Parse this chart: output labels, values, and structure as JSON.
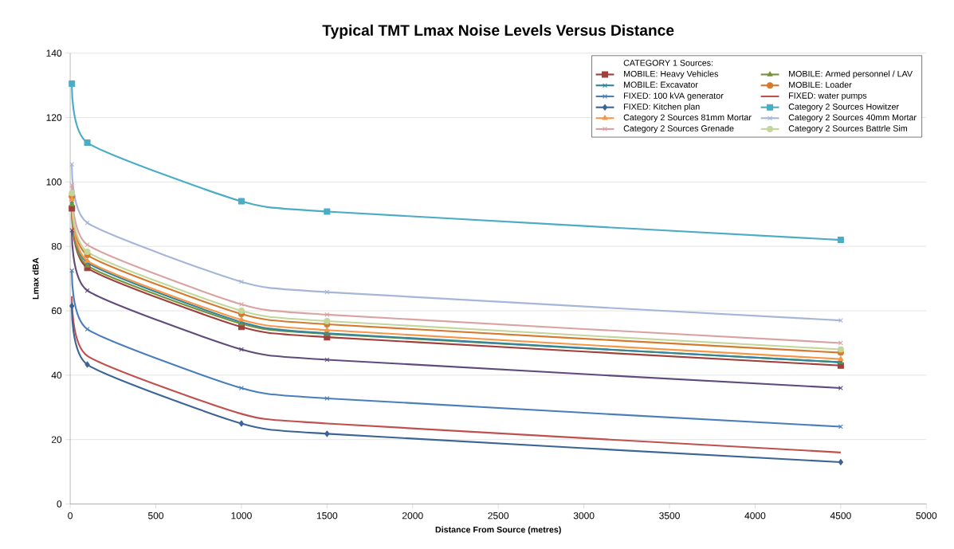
{
  "chart_data": {
    "type": "line",
    "title": "Typical TMT Lmax Noise Levels Versus Distance",
    "xlabel": "Distance From Source (metres)",
    "ylabel": "Lmax    dBA",
    "legend_title": "CATEGORY 1 Sources:",
    "x": [
      10,
      100,
      1000,
      1500,
      4500
    ],
    "series": [
      {
        "name": "MOBILE: Heavy Vehicles",
        "color": "#a0403c",
        "marker": "square",
        "values": [
          91.8,
          73.3,
          55,
          51.8,
          43
        ]
      },
      {
        "name": "MOBILE: Armed personnel / LAV",
        "color": "#77933c",
        "marker": "triangle",
        "values": [
          93,
          74,
          56,
          52.8,
          44
        ]
      },
      {
        "color": "#604a7b",
        "marker": "cross",
        "values": [
          85,
          66.3,
          48,
          44.8,
          36
        ]
      },
      {
        "name": "MOBILE: Excavator",
        "color": "#31859c",
        "marker": "cross",
        "values": [
          94,
          75,
          56.5,
          53,
          44
        ]
      },
      {
        "name": "MOBILE: Loader",
        "color": "#d47a2e",
        "marker": "circle",
        "values": [
          95.5,
          77.3,
          59,
          55.8,
          47
        ]
      },
      {
        "name": "FIXED: 100 kVA generator",
        "color": "#4a7ebb",
        "marker": "cross",
        "values": [
          72.5,
          54.3,
          36,
          32.8,
          24
        ]
      },
      {
        "name": "FIXED: water pumps",
        "color": "#c0504d",
        "marker": "none",
        "values": [
          64.5,
          46,
          28,
          25,
          16
        ]
      },
      {
        "name": "FIXED: Kitchen plan",
        "color": "#3c6496",
        "marker": "diamond",
        "values": [
          61.5,
          43.3,
          25,
          21.8,
          13
        ]
      },
      {
        "name": "Category 2 Sources Howitzer",
        "color": "#4bacc6",
        "marker": "square",
        "values": [
          130.5,
          112.2,
          94,
          90.8,
          82
        ]
      },
      {
        "name": "Category 2 Sources 81mm Mortar",
        "color": "#f79646",
        "marker": "triangle",
        "values": [
          94.5,
          75.5,
          57.2,
          54,
          45
        ]
      },
      {
        "name": "Category 2 Sources 40mm Mortar",
        "color": "#a5b6d8",
        "marker": "cross",
        "values": [
          105.5,
          87.3,
          69,
          65.8,
          57
        ]
      },
      {
        "name": "Category 2 Sources Grenade",
        "color": "#d9a3a2",
        "marker": "cross",
        "values": [
          99,
          80.5,
          62,
          58.8,
          50
        ]
      },
      {
        "name": "Category 2 Sources Battrle  Sim",
        "color": "#c3d69b",
        "marker": "circle",
        "values": [
          96.5,
          78.3,
          60,
          56.8,
          48
        ]
      }
    ],
    "xlim": [
      0,
      5000
    ],
    "xticks": [
      0,
      500,
      1000,
      1500,
      2000,
      2500,
      3000,
      3500,
      4000,
      4500,
      5000
    ],
    "ylim": [
      0,
      140
    ],
    "yticks": [
      0,
      20,
      40,
      60,
      80,
      100,
      120,
      140
    ],
    "grid": "y",
    "legend": "top right",
    "line_style": "solid"
  }
}
